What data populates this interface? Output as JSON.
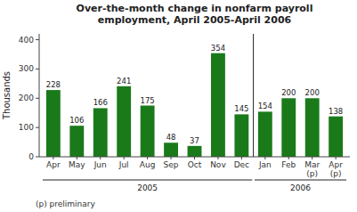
{
  "chart_data": {
    "type": "bar",
    "title": "Over-the-month change in nonfarm payroll\nemployment, April 2005-April 2006",
    "y_label": "Thousands",
    "categories": [
      "Apr",
      "May",
      "Jun",
      "Jul",
      "Aug",
      "Sep",
      "Oct",
      "Nov",
      "Dec",
      "Jan",
      "Feb",
      "Mar\n(p)",
      "Apr\n(p)"
    ],
    "values": [
      228,
      106,
      166,
      241,
      175,
      48,
      37,
      354,
      145,
      154,
      200,
      200,
      138
    ],
    "color": "#1a7a1a",
    "ylim": [
      0,
      420
    ],
    "yticks": [
      0,
      100,
      200,
      300,
      400
    ],
    "grid": false,
    "data_labels": true,
    "annotations": [
      {
        "text": "2005",
        "from": "Apr",
        "to": "Dec"
      },
      {
        "text": "2006",
        "from": "Jan",
        "to": "Apr\n(p)"
      }
    ],
    "footnote": "(p) preliminary"
  }
}
